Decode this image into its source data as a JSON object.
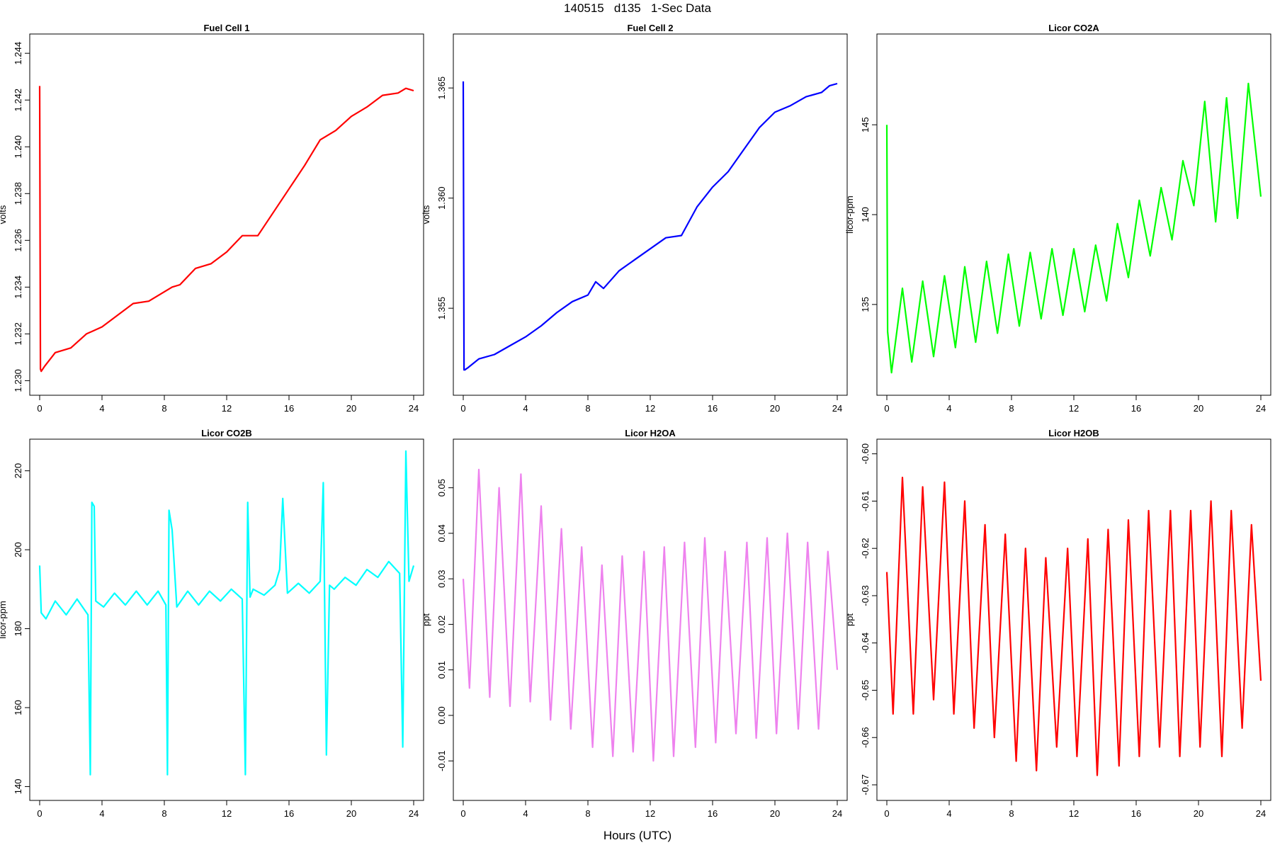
{
  "figure": {
    "title": "140515   d135   1-Sec Data",
    "xlabel": "Hours (UTC)"
  },
  "chart_data": [
    {
      "type": "line",
      "title": "Fuel Cell 1",
      "ylabel": "volts",
      "color": "#ff0000",
      "x_ticks": [
        0,
        4,
        8,
        12,
        16,
        20,
        24
      ],
      "y_ticks": [
        "1.230",
        "1.232",
        "1.234",
        "1.236",
        "1.238",
        "1.240",
        "1.242",
        "1.244"
      ],
      "xlim": [
        0,
        24
      ],
      "ylim": [
        1.2298,
        1.2444
      ],
      "x": [
        0,
        0.05,
        0.1,
        0.3,
        1,
        2,
        3,
        4,
        5,
        6,
        7,
        8,
        8.5,
        9,
        10,
        11,
        12,
        13,
        14,
        15,
        16,
        17,
        18,
        19,
        20,
        21,
        22,
        23,
        23.5,
        24
      ],
      "values": [
        1.2426,
        1.2305,
        1.2304,
        1.2306,
        1.2312,
        1.2314,
        1.232,
        1.2323,
        1.2328,
        1.2333,
        1.2334,
        1.2338,
        1.234,
        1.2341,
        1.2348,
        1.235,
        1.2355,
        1.2362,
        1.2362,
        1.2372,
        1.2382,
        1.2392,
        1.2403,
        1.2407,
        1.2413,
        1.2417,
        1.2422,
        1.2423,
        1.2425,
        1.2424
      ]
    },
    {
      "type": "line",
      "title": "Fuel Cell 2",
      "ylabel": "volts",
      "color": "#0000ff",
      "x_ticks": [
        0,
        4,
        8,
        12,
        16,
        20,
        24
      ],
      "y_ticks": [
        "1.355",
        "1.360",
        "1.365"
      ],
      "xlim": [
        0,
        24
      ],
      "ylim": [
        1.3515,
        1.367
      ],
      "x": [
        0,
        0.05,
        0.1,
        0.3,
        1,
        2,
        3,
        4,
        5,
        6,
        7,
        8,
        8.5,
        9,
        10,
        11,
        12,
        13,
        14,
        15,
        16,
        17,
        18,
        19,
        20,
        21,
        22,
        23,
        23.5,
        24
      ],
      "values": [
        1.3653,
        1.3522,
        1.3522,
        1.3523,
        1.3527,
        1.3529,
        1.3533,
        1.3537,
        1.3542,
        1.3548,
        1.3553,
        1.3556,
        1.3562,
        1.3559,
        1.3567,
        1.3572,
        1.3577,
        1.3582,
        1.3583,
        1.3596,
        1.3605,
        1.3612,
        1.3622,
        1.3632,
        1.3639,
        1.3642,
        1.3646,
        1.3648,
        1.3651,
        1.3652
      ]
    },
    {
      "type": "line",
      "title": "Licor CO2A",
      "ylabel": "licor-ppm",
      "color": "#00ff00",
      "x_ticks": [
        0,
        4,
        8,
        12,
        16,
        20,
        24
      ],
      "y_ticks": [
        "135",
        "140",
        "145"
      ],
      "xlim": [
        0,
        24
      ],
      "ylim": [
        130.5,
        149.5
      ],
      "x": [
        0,
        0.05,
        0.3,
        1,
        1.6,
        2.3,
        3,
        3.7,
        4.4,
        5,
        5.7,
        6.4,
        7.1,
        7.8,
        8.5,
        9.2,
        9.9,
        10.6,
        11.3,
        12,
        12.7,
        13.4,
        14.1,
        14.8,
        15.5,
        16.2,
        16.9,
        17.6,
        18.3,
        19,
        19.7,
        20.4,
        21.1,
        21.8,
        22.5,
        23.2,
        24
      ],
      "values": [
        145,
        133.5,
        131.2,
        135.9,
        131.8,
        136.3,
        132.1,
        136.6,
        132.6,
        137.1,
        132.9,
        137.4,
        133.4,
        137.8,
        133.8,
        137.9,
        134.2,
        138.1,
        134.4,
        138.1,
        134.6,
        138.3,
        135.2,
        139.5,
        136.5,
        140.8,
        137.7,
        141.5,
        138.6,
        143,
        140.5,
        146.3,
        139.6,
        146.5,
        139.8,
        147.3,
        141
      ]
    },
    {
      "type": "line",
      "title": "Licor CO2B",
      "ylabel": "licor-ppm",
      "color": "#00ffff",
      "x_ticks": [
        0,
        4,
        8,
        12,
        16,
        20,
        24
      ],
      "y_ticks": [
        "140",
        "160",
        "180",
        "200",
        "220"
      ],
      "xlim": [
        0,
        24
      ],
      "ylim": [
        139,
        225.5
      ],
      "x": [
        0,
        0.1,
        0.4,
        1,
        1.7,
        2.4,
        3.1,
        3.25,
        3.35,
        3.5,
        3.6,
        4.1,
        4.8,
        5.5,
        6.2,
        6.9,
        7.6,
        8.1,
        8.2,
        8.3,
        8.5,
        8.8,
        9.5,
        10.2,
        10.9,
        11.6,
        12.3,
        13,
        13.2,
        13.35,
        13.5,
        13.7,
        14.4,
        15.1,
        15.4,
        15.6,
        15.9,
        16.6,
        17.3,
        18,
        18.2,
        18.4,
        18.6,
        18.9,
        19.6,
        20.3,
        21,
        21.7,
        22.4,
        23.1,
        23.3,
        23.5,
        23.7,
        24
      ],
      "values": [
        196,
        184,
        182.5,
        187,
        183.5,
        187.5,
        183.5,
        143,
        212,
        211,
        187,
        185.5,
        189,
        186,
        189.5,
        186,
        189.5,
        186,
        143,
        210,
        205,
        185.5,
        189.5,
        186,
        189.5,
        187,
        190,
        187.5,
        143,
        212,
        188,
        190,
        188.5,
        191,
        195,
        213,
        189,
        191.5,
        189,
        192,
        217,
        148,
        191,
        190,
        193,
        191,
        195,
        193,
        197,
        194,
        150,
        225,
        192,
        196
      ]
    },
    {
      "type": "line",
      "title": "Licor H2OA",
      "ylabel": "ppt",
      "color": "#ee82ee",
      "x_ticks": [
        0,
        4,
        8,
        12,
        16,
        20,
        24
      ],
      "y_ticks": [
        "-0.01",
        "0.00",
        "0.01",
        "0.02",
        "0.03",
        "0.04",
        "0.05"
      ],
      "xlim": [
        0,
        24
      ],
      "ylim": [
        -0.0165,
        0.0585
      ],
      "x": [
        0,
        0.4,
        1.0,
        1.7,
        2.3,
        3.0,
        3.7,
        4.3,
        5.0,
        5.6,
        6.3,
        6.9,
        7.6,
        8.3,
        8.9,
        9.6,
        10.2,
        10.9,
        11.6,
        12.2,
        12.9,
        13.5,
        14.2,
        14.9,
        15.5,
        16.2,
        16.8,
        17.5,
        18.2,
        18.8,
        19.5,
        20.1,
        20.8,
        21.5,
        22.1,
        22.8,
        23.4,
        24
      ],
      "values": [
        0.03,
        0.006,
        0.054,
        0.004,
        0.05,
        0.002,
        0.053,
        0.003,
        0.046,
        -0.001,
        0.041,
        -0.003,
        0.037,
        -0.007,
        0.033,
        -0.009,
        0.035,
        -0.008,
        0.036,
        -0.01,
        0.037,
        -0.009,
        0.038,
        -0.007,
        0.039,
        -0.006,
        0.036,
        -0.004,
        0.038,
        -0.005,
        0.039,
        -0.004,
        0.04,
        -0.003,
        0.038,
        -0.003,
        0.036,
        0.01
      ]
    },
    {
      "type": "line",
      "title": "Licor H2OB",
      "ylabel": "ppt",
      "color": "#ff0000",
      "x_ticks": [
        0,
        4,
        8,
        12,
        16,
        20,
        24
      ],
      "y_ticks": [
        "-0.67",
        "-0.66",
        "-0.65",
        "-0.64",
        "-0.63",
        "-0.62",
        "-0.61",
        "-0.60"
      ],
      "xlim": [
        0,
        24
      ],
      "ylim": [
        -0.6712,
        -0.599
      ],
      "x": [
        0,
        0.4,
        1.0,
        1.7,
        2.3,
        3.0,
        3.7,
        4.3,
        5.0,
        5.6,
        6.3,
        6.9,
        7.6,
        8.3,
        8.9,
        9.6,
        10.2,
        10.9,
        11.6,
        12.2,
        12.9,
        13.5,
        14.2,
        14.9,
        15.5,
        16.2,
        16.8,
        17.5,
        18.2,
        18.8,
        19.5,
        20.1,
        20.8,
        21.5,
        22.1,
        22.8,
        23.4,
        24
      ],
      "values": [
        -0.625,
        -0.655,
        -0.605,
        -0.655,
        -0.607,
        -0.652,
        -0.606,
        -0.655,
        -0.61,
        -0.658,
        -0.615,
        -0.66,
        -0.617,
        -0.665,
        -0.62,
        -0.667,
        -0.622,
        -0.662,
        -0.62,
        -0.664,
        -0.618,
        -0.668,
        -0.616,
        -0.666,
        -0.614,
        -0.664,
        -0.612,
        -0.662,
        -0.612,
        -0.664,
        -0.612,
        -0.662,
        -0.61,
        -0.664,
        -0.612,
        -0.658,
        -0.615,
        -0.648
      ]
    }
  ]
}
